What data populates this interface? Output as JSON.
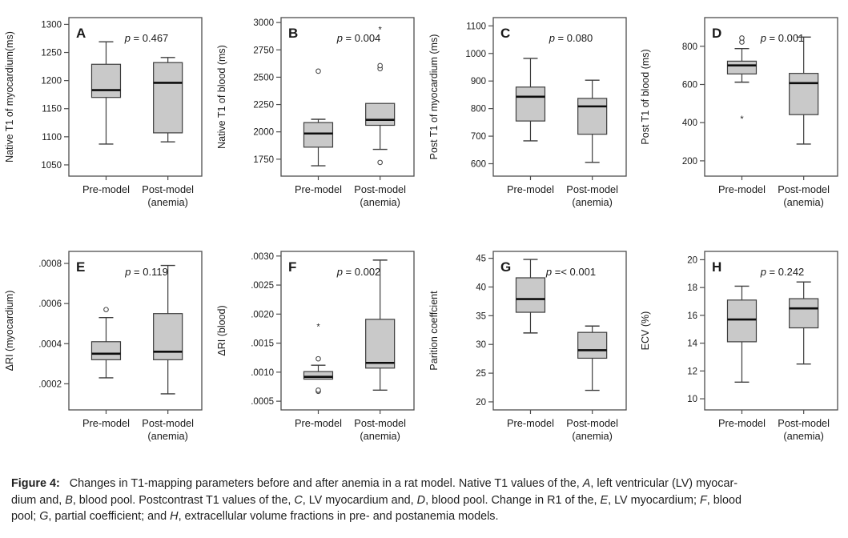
{
  "figure": {
    "caption_lines": [
      [
        {
          "t": "Figure 4:",
          "b": true
        },
        {
          "t": "   Changes in T1-mapping parameters before and after anemia in a rat model. Native T1 values of the, "
        },
        {
          "t": "A",
          "i": true
        },
        {
          "t": ", left ventricular (LV) myocar-"
        }
      ],
      [
        {
          "t": "dium and, "
        },
        {
          "t": "B",
          "i": true
        },
        {
          "t": ", blood pool. Postcontrast T1 values of the, "
        },
        {
          "t": "C",
          "i": true
        },
        {
          "t": ", LV myocardium and, "
        },
        {
          "t": "D",
          "i": true
        },
        {
          "t": ", blood pool. Change in R1 of the, "
        },
        {
          "t": "E",
          "i": true
        },
        {
          "t": ", LV myocardium; "
        },
        {
          "t": "F",
          "i": true
        },
        {
          "t": ", blood"
        }
      ],
      [
        {
          "t": "pool; "
        },
        {
          "t": "G",
          "i": true
        },
        {
          "t": ", partial coefficient; and "
        },
        {
          "t": "H",
          "i": true
        },
        {
          "t": ", extracellular volume fractions in pre- and postanemia models."
        }
      ]
    ],
    "colors": {
      "box_fill": "#c9c9c9",
      "box_stroke": "#3d3d3d",
      "median": "#0d0d0d",
      "frame": "#4d4d4d",
      "text": "#1a1a1a"
    }
  },
  "chart_data": [
    {
      "type": "box",
      "panel": "A",
      "p_text": "p = 0.467",
      "ylabel": "Native T1 of myocardium(ms)",
      "ylim": [
        1030,
        1312
      ],
      "ytick_values": [
        1050,
        1100,
        1150,
        1200,
        1250,
        1300
      ],
      "ytick_labels": [
        "1050",
        "1100",
        "1150",
        "1200",
        "1250",
        "1300"
      ],
      "categories": [
        {
          "line1": "Pre-model",
          "line2": ""
        },
        {
          "line1": "Post-model",
          "line2": "(anemia)"
        }
      ],
      "boxes": [
        {
          "whisker_low": 1087,
          "q1": 1170,
          "median": 1183,
          "q3": 1229,
          "whisker_high": 1269,
          "outliers": []
        },
        {
          "whisker_low": 1091,
          "q1": 1107,
          "median": 1196,
          "q3": 1232,
          "whisker_high": 1241,
          "outliers": []
        }
      ]
    },
    {
      "type": "box",
      "panel": "B",
      "p_text": "p = 0.004",
      "ylabel": "Native T1 of blood (ms)",
      "ylim": [
        1595,
        3045
      ],
      "ytick_values": [
        1750,
        2000,
        2250,
        2500,
        2750,
        3000
      ],
      "ytick_labels": [
        "1750",
        "2000",
        "2250",
        "2500",
        "2750",
        "3000"
      ],
      "categories": [
        {
          "line1": "Pre-model",
          "line2": ""
        },
        {
          "line1": "Post-model",
          "line2": "(anemia)"
        }
      ],
      "boxes": [
        {
          "whisker_low": 1690,
          "q1": 1860,
          "median": 1985,
          "q3": 2085,
          "whisker_high": 2115,
          "outliers": [
            {
              "value": 2555,
              "marker": "circle"
            }
          ]
        },
        {
          "whisker_low": 1840,
          "q1": 2060,
          "median": 2110,
          "q3": 2260,
          "whisker_high": null,
          "outliers": [
            {
              "value": 2578,
              "marker": "circle"
            },
            {
              "value": 2606,
              "marker": "circle"
            },
            {
              "value": 2935,
              "marker": "star"
            },
            {
              "value": 1720,
              "marker": "circle"
            }
          ]
        }
      ]
    },
    {
      "type": "box",
      "panel": "C",
      "p_text": "p = 0.080",
      "ylabel": "Post T1 of myocardium (ms)",
      "ylim": [
        555,
        1130
      ],
      "ytick_values": [
        600,
        700,
        800,
        900,
        1000,
        1100
      ],
      "ytick_labels": [
        "600",
        "700",
        "800",
        "900",
        "1000",
        "1100"
      ],
      "categories": [
        {
          "line1": "Pre-model",
          "line2": ""
        },
        {
          "line1": "Post-model",
          "line2": "(anemia)"
        }
      ],
      "boxes": [
        {
          "whisker_low": 683,
          "q1": 755,
          "median": 843,
          "q3": 878,
          "whisker_high": 982,
          "outliers": []
        },
        {
          "whisker_low": 605,
          "q1": 707,
          "median": 808,
          "q3": 837,
          "whisker_high": 903,
          "outliers": []
        }
      ]
    },
    {
      "type": "box",
      "panel": "D",
      "p_text": "p = 0.001",
      "ylabel": "Post T1 of blood (ms)",
      "ylim": [
        120,
        950
      ],
      "ytick_values": [
        200,
        400,
        600,
        800
      ],
      "ytick_labels": [
        "200",
        "400",
        "600",
        "800"
      ],
      "categories": [
        {
          "line1": "Pre-model",
          "line2": ""
        },
        {
          "line1": "Post-model",
          "line2": "(anemia)"
        }
      ],
      "boxes": [
        {
          "whisker_low": 612,
          "q1": 655,
          "median": 700,
          "q3": 722,
          "whisker_high": 788,
          "outliers": [
            {
              "value": 822,
              "marker": "circle"
            },
            {
              "value": 843,
              "marker": "circle"
            },
            {
              "value": 420,
              "marker": "star"
            }
          ]
        },
        {
          "whisker_low": 288,
          "q1": 442,
          "median": 607,
          "q3": 658,
          "whisker_high": 848,
          "outliers": []
        }
      ]
    },
    {
      "type": "box",
      "panel": "E",
      "p_text": "p = 0.119",
      "ylabel": "ΔRI (myocardium)",
      "ylim": [
        7e-05,
        0.00086
      ],
      "ytick_values": [
        0.0002,
        0.0004,
        0.0006,
        0.0008
      ],
      "ytick_labels": [
        ".0002",
        ".0004",
        ".0006",
        ".0008"
      ],
      "categories": [
        {
          "line1": "Pre-model",
          "line2": ""
        },
        {
          "line1": "Post-model",
          "line2": "(anemia)"
        }
      ],
      "boxes": [
        {
          "whisker_low": 0.00023,
          "q1": 0.00032,
          "median": 0.00035,
          "q3": 0.00041,
          "whisker_high": 0.00053,
          "outliers": [
            {
              "value": 0.00057,
              "marker": "circle"
            }
          ]
        },
        {
          "whisker_low": 0.00015,
          "q1": 0.00032,
          "median": 0.00036,
          "q3": 0.00055,
          "whisker_high": 0.00079,
          "outliers": []
        }
      ]
    },
    {
      "type": "box",
      "panel": "F",
      "p_text": "p = 0.002",
      "ylabel": "ΔRI (blood)",
      "ylim": [
        0.00035,
        0.00308
      ],
      "ytick_values": [
        0.0005,
        0.001,
        0.0015,
        0.002,
        0.0025,
        0.003
      ],
      "ytick_labels": [
        ".0005",
        ".0010",
        ".0015",
        ".0020",
        ".0025",
        ".0030"
      ],
      "categories": [
        {
          "line1": "Pre-model",
          "line2": ""
        },
        {
          "line1": "Post-model",
          "line2": "(anemia)"
        }
      ],
      "boxes": [
        {
          "whisker_low": null,
          "q1": 0.00088,
          "median": 0.00092,
          "q3": 0.00101,
          "whisker_high": 0.00112,
          "outliers": [
            {
              "value": 0.00178,
              "marker": "star"
            },
            {
              "value": 0.00123,
              "marker": "circle"
            },
            {
              "value": 0.00067,
              "marker": "circle"
            },
            {
              "value": 0.00069,
              "marker": "circle"
            }
          ]
        },
        {
          "whisker_low": 0.00069,
          "q1": 0.00107,
          "median": 0.00116,
          "q3": 0.00191,
          "whisker_high": 0.00293,
          "outliers": []
        }
      ]
    },
    {
      "type": "box",
      "panel": "G",
      "p_text": "p =< 0.001",
      "ylabel": "Parition coeffcient",
      "ylim": [
        18.6,
        46.2
      ],
      "ytick_values": [
        20,
        25,
        30,
        35,
        40,
        45
      ],
      "ytick_labels": [
        "20",
        "25",
        "30",
        "35",
        "40",
        "45"
      ],
      "categories": [
        {
          "line1": "Pre-model",
          "line2": ""
        },
        {
          "line1": "Post-model",
          "line2": "(anemia)"
        }
      ],
      "boxes": [
        {
          "whisker_low": 32.0,
          "q1": 35.6,
          "median": 37.9,
          "q3": 41.6,
          "whisker_high": 44.8,
          "outliers": []
        },
        {
          "whisker_low": 22.0,
          "q1": 27.6,
          "median": 29.0,
          "q3": 32.1,
          "whisker_high": 33.2,
          "outliers": []
        }
      ]
    },
    {
      "type": "box",
      "panel": "H",
      "p_text": "p = 0.242",
      "ylabel": "ECV (%)",
      "ylim": [
        9.2,
        20.6
      ],
      "ytick_values": [
        10,
        12,
        14,
        16,
        18,
        20
      ],
      "ytick_labels": [
        "10",
        "12",
        "14",
        "16",
        "18",
        "20"
      ],
      "categories": [
        {
          "line1": "Pre-model",
          "line2": ""
        },
        {
          "line1": "Post-model",
          "line2": "(anemia)"
        }
      ],
      "boxes": [
        {
          "whisker_low": 11.2,
          "q1": 14.1,
          "median": 15.7,
          "q3": 17.1,
          "whisker_high": 18.1,
          "outliers": []
        },
        {
          "whisker_low": 12.5,
          "q1": 15.1,
          "median": 16.5,
          "q3": 17.2,
          "whisker_high": 18.4,
          "outliers": []
        }
      ]
    }
  ]
}
